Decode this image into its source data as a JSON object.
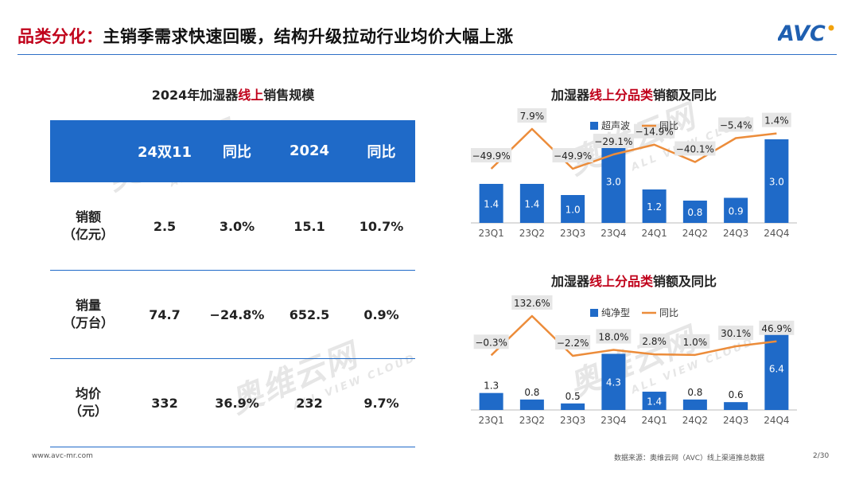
{
  "header": {
    "title_highlight": "品类分化：",
    "title_rest": "主销季需求快速回暖，结构升级拉动行业均价大幅上涨",
    "logo_text": "AVC"
  },
  "watermark": {
    "big": "奥维云网",
    "small": "ALL VIEW CLOUD"
  },
  "table": {
    "title_pre": "2024年加湿器",
    "title_highlight": "线上",
    "title_post": "销售规模",
    "columns": [
      "",
      "24双11",
      "同比",
      "2024",
      "同比"
    ],
    "rows": [
      {
        "label_line1": "销额",
        "label_line2": "（亿元）",
        "v1": "2.5",
        "yoy1": "3.0%",
        "v2": "15.1",
        "yoy2": "10.7%"
      },
      {
        "label_line1": "销量",
        "label_line2": "（万台）",
        "v1": "74.7",
        "yoy1": "−24.8%",
        "v2": "652.5",
        "yoy2": "0.9%"
      },
      {
        "label_line1": "均价",
        "label_line2": "（元）",
        "v1": "332",
        "yoy1": "36.9%",
        "v2": "232",
        "yoy2": "9.7%"
      }
    ]
  },
  "chart_data": [
    {
      "type": "bar",
      "title_pre": "加湿器",
      "title_highlight": "线上分品类",
      "title_post": "销额及同比",
      "categories": [
        "23Q1",
        "23Q2",
        "23Q3",
        "23Q4",
        "24Q1",
        "24Q2",
        "24Q3",
        "24Q4"
      ],
      "series": [
        {
          "name": "超声波",
          "type": "bar",
          "values": [
            1.4,
            1.4,
            1.0,
            3.0,
            1.2,
            0.8,
            0.9,
            3.0
          ],
          "labels": [
            "1.4",
            "1.4",
            "1.0",
            "3.0",
            "1.2",
            "0.8",
            "0.9",
            "3.0"
          ]
        },
        {
          "name": "同比",
          "type": "line",
          "values": [
            -49.9,
            7.9,
            -49.9,
            -29.1,
            -14.9,
            -40.1,
            -5.4,
            1.4
          ],
          "labels": [
            "−49.9%",
            "7.9%",
            "−49.9%",
            "−29.1%",
            "−14.9%",
            "−40.1%",
            "−5.4%",
            "1.4%"
          ]
        }
      ],
      "colors": {
        "bar": "#1f6ac8",
        "line": "#ec8c3a"
      },
      "legend": "top"
    },
    {
      "type": "bar",
      "title_pre": "加湿器",
      "title_highlight": "线上分品类",
      "title_post": "销额及同比",
      "categories": [
        "23Q1",
        "23Q2",
        "23Q3",
        "23Q4",
        "24Q1",
        "24Q2",
        "24Q3",
        "24Q4"
      ],
      "series": [
        {
          "name": "纯净型",
          "type": "bar",
          "values": [
            1.3,
            0.8,
            0.5,
            4.3,
            1.4,
            0.8,
            0.6,
            6.4
          ],
          "labels": [
            "1.3",
            "0.8",
            "0.5",
            "4.3",
            "1.4",
            "0.8",
            "0.6",
            "6.4"
          ]
        },
        {
          "name": "同比",
          "type": "line",
          "values": [
            -0.3,
            132.6,
            -2.2,
            18.0,
            2.8,
            1.0,
            30.1,
            46.9
          ],
          "labels": [
            "−0.3%",
            "132.6%",
            "−2.2%",
            "18.0%",
            "2.8%",
            "1.0%",
            "30.1%",
            "46.9%"
          ]
        }
      ],
      "colors": {
        "bar": "#1f6ac8",
        "line": "#ec8c3a"
      },
      "legend": "top"
    }
  ],
  "footer": {
    "url": "www.avc-mr.com",
    "source": "数据来源：奥维云网（AVC）线上渠道推总数据",
    "page": "2/30"
  }
}
